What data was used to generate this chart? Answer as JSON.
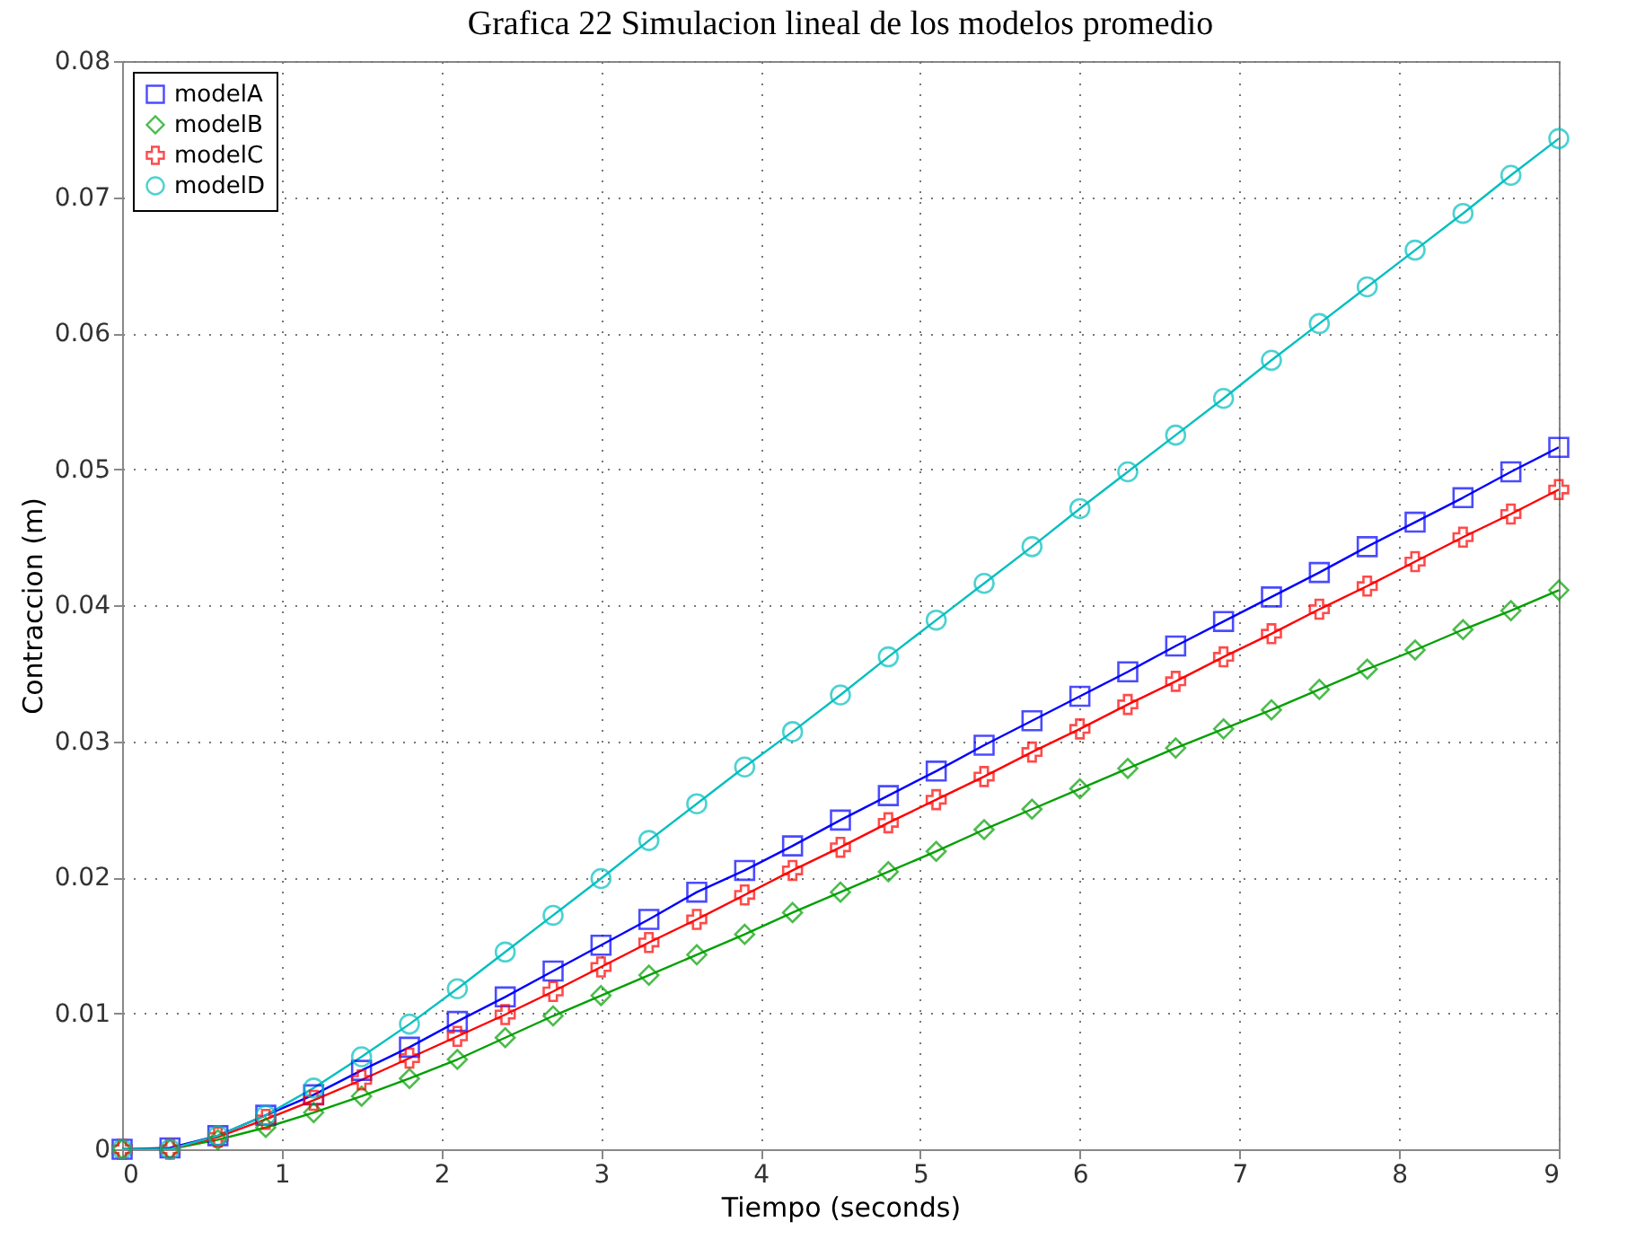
{
  "chart_data": {
    "type": "line",
    "title": "Grafica 22 Simulacion lineal de los modelos promedio",
    "xlabel": "Tiempo (seconds)",
    "ylabel": "Contraccion (m)",
    "x": [
      0,
      0.3,
      0.6,
      0.9,
      1.2,
      1.5,
      1.8,
      2.1,
      2.4,
      2.7,
      3.0,
      3.3,
      3.6,
      3.9,
      4.2,
      4.5,
      4.8,
      5.1,
      5.4,
      5.7,
      6.0,
      6.3,
      6.6,
      6.9,
      7.2,
      7.5,
      7.8,
      8.1,
      8.4,
      8.7,
      9.0
    ],
    "series": [
      {
        "name": "modelA",
        "color": "#0000ff",
        "marker": "square",
        "values": [
          0,
          0.0001,
          0.001,
          0.0025,
          0.004,
          0.0058,
          0.0075,
          0.0094,
          0.0112,
          0.0131,
          0.015,
          0.0169,
          0.0189,
          0.0205,
          0.0223,
          0.0242,
          0.026,
          0.0278,
          0.0297,
          0.0315,
          0.0333,
          0.0351,
          0.037,
          0.0388,
          0.0406,
          0.0424,
          0.0443,
          0.0461,
          0.0479,
          0.0498,
          0.0516
        ]
      },
      {
        "name": "modelB",
        "color": "#00a000",
        "marker": "diamond",
        "values": [
          0,
          0,
          0.0007,
          0.0016,
          0.0027,
          0.0039,
          0.0052,
          0.0066,
          0.0082,
          0.0098,
          0.0113,
          0.0128,
          0.0143,
          0.0158,
          0.0174,
          0.0189,
          0.0204,
          0.0219,
          0.0235,
          0.025,
          0.0265,
          0.028,
          0.0295,
          0.0309,
          0.0323,
          0.0338,
          0.0353,
          0.0367,
          0.0382,
          0.0396,
          0.0411
        ]
      },
      {
        "name": "modelC",
        "color": "#ff0000",
        "marker": "cross",
        "values": [
          0,
          0,
          0.0009,
          0.0022,
          0.0036,
          0.0051,
          0.0067,
          0.0083,
          0.0099,
          0.0116,
          0.0134,
          0.0152,
          0.0169,
          0.0187,
          0.0205,
          0.0222,
          0.024,
          0.0257,
          0.0274,
          0.0292,
          0.0309,
          0.0327,
          0.0344,
          0.0362,
          0.0379,
          0.0397,
          0.0414,
          0.0432,
          0.045,
          0.0467,
          0.0485
        ]
      },
      {
        "name": "modelD",
        "color": "#00bfbf",
        "marker": "circle",
        "values": [
          0,
          0,
          0.001,
          0.0025,
          0.0045,
          0.0068,
          0.0092,
          0.0118,
          0.0145,
          0.0172,
          0.0199,
          0.0227,
          0.0254,
          0.0281,
          0.0307,
          0.0334,
          0.0362,
          0.0389,
          0.0416,
          0.0443,
          0.0471,
          0.0498,
          0.0525,
          0.0552,
          0.058,
          0.0607,
          0.0634,
          0.0661,
          0.0688,
          0.0716,
          0.0743
        ]
      }
    ],
    "xlim": [
      0,
      9
    ],
    "xticks": [
      0,
      1,
      2,
      3,
      4,
      5,
      6,
      7,
      8,
      9
    ],
    "ylim": [
      0,
      0.08
    ],
    "yticks": [
      0,
      0.01,
      0.02,
      0.03,
      0.04,
      0.05,
      0.06,
      0.07,
      0.08
    ],
    "grid": true,
    "legend": "top left",
    "line_style": "solid"
  }
}
